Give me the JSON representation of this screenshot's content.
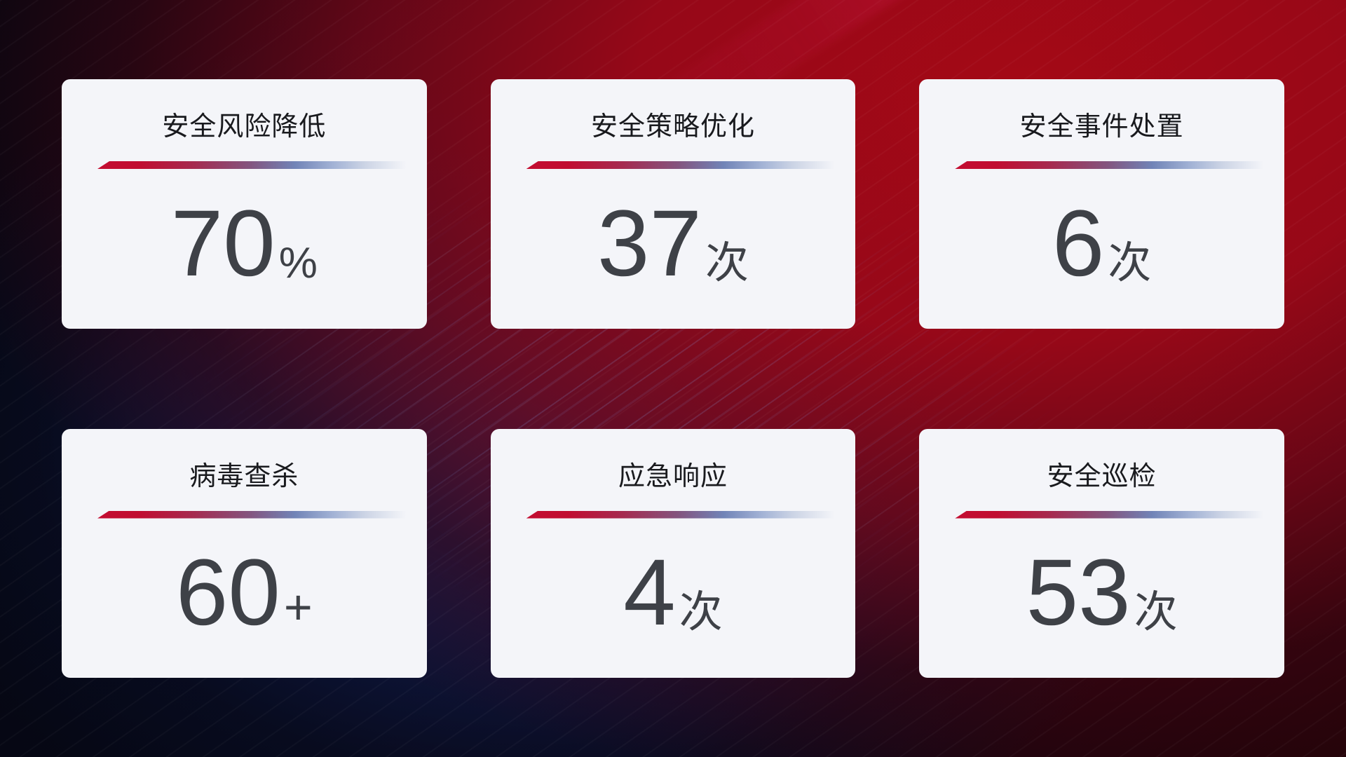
{
  "cards": [
    {
      "title": "安全风险降低",
      "value": "70",
      "unit": "%"
    },
    {
      "title": "安全策略优化",
      "value": "37",
      "unit": "次"
    },
    {
      "title": "安全事件处置",
      "value": "6",
      "unit": "次"
    },
    {
      "title": "病毒查杀",
      "value": "60",
      "unit": "+"
    },
    {
      "title": "应急响应",
      "value": "4",
      "unit": "次"
    },
    {
      "title": "安全巡检",
      "value": "53",
      "unit": "次"
    }
  ],
  "colors": {
    "accent_red": "#c30d31",
    "divider_blue": "#7184b7",
    "card_background": "#f4f5f9",
    "title_text": "#191a1e",
    "number_text": "#3e4147",
    "background_red": "#a70916",
    "background_navy": "#111c4e"
  }
}
